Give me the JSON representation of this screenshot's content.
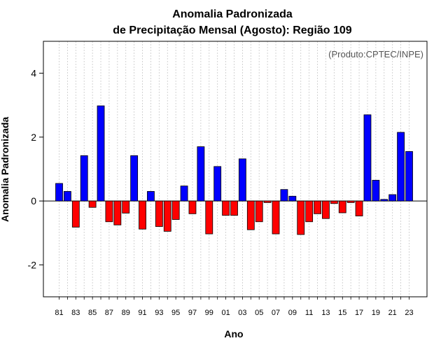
{
  "chart_data": {
    "type": "bar",
    "title": "Anomalia Padronizada",
    "subtitle": "de Precipitação Mensal (Agosto): Região 109",
    "xlabel": "Ano",
    "ylabel": "Anomalia Padronizada",
    "annotation": "(Produto:CPTEC/INPE)",
    "ylim": [
      -3,
      5
    ],
    "yticks": [
      -2,
      0,
      2,
      4
    ],
    "ytick_labels": [
      "-2",
      "0",
      "2",
      "4"
    ],
    "xtick_labels": [
      "81",
      "83",
      "85",
      "87",
      "89",
      "91",
      "93",
      "95",
      "97",
      "99",
      "01",
      "03",
      "05",
      "07",
      "09",
      "11",
      "13",
      "15",
      "17",
      "19",
      "21",
      "23"
    ],
    "xtick_every": 2,
    "categories": [
      "81",
      "82",
      "83",
      "84",
      "85",
      "86",
      "87",
      "88",
      "89",
      "90",
      "91",
      "92",
      "93",
      "94",
      "95",
      "96",
      "97",
      "98",
      "99",
      "00",
      "01",
      "02",
      "03",
      "04",
      "05",
      "06",
      "07",
      "08",
      "09",
      "10",
      "11",
      "12",
      "13",
      "14",
      "15",
      "16",
      "17",
      "18",
      "19",
      "20",
      "21",
      "22",
      "23"
    ],
    "values": [
      0.55,
      0.3,
      -0.82,
      1.42,
      -0.2,
      2.98,
      -0.65,
      -0.75,
      -0.38,
      1.42,
      -0.88,
      0.3,
      -0.8,
      -0.95,
      -0.58,
      0.47,
      -0.4,
      1.7,
      -1.03,
      1.08,
      -0.45,
      -0.45,
      1.32,
      -0.9,
      -0.65,
      -0.05,
      -1.03,
      0.36,
      0.15,
      -1.05,
      -0.65,
      -0.4,
      -0.55,
      -0.08,
      -0.37,
      -0.05,
      -0.47,
      2.7,
      0.65,
      0.05,
      0.2,
      2.15,
      1.55
    ],
    "positive_color": "#0000ff",
    "negative_color": "#ff0000",
    "grid": true
  }
}
